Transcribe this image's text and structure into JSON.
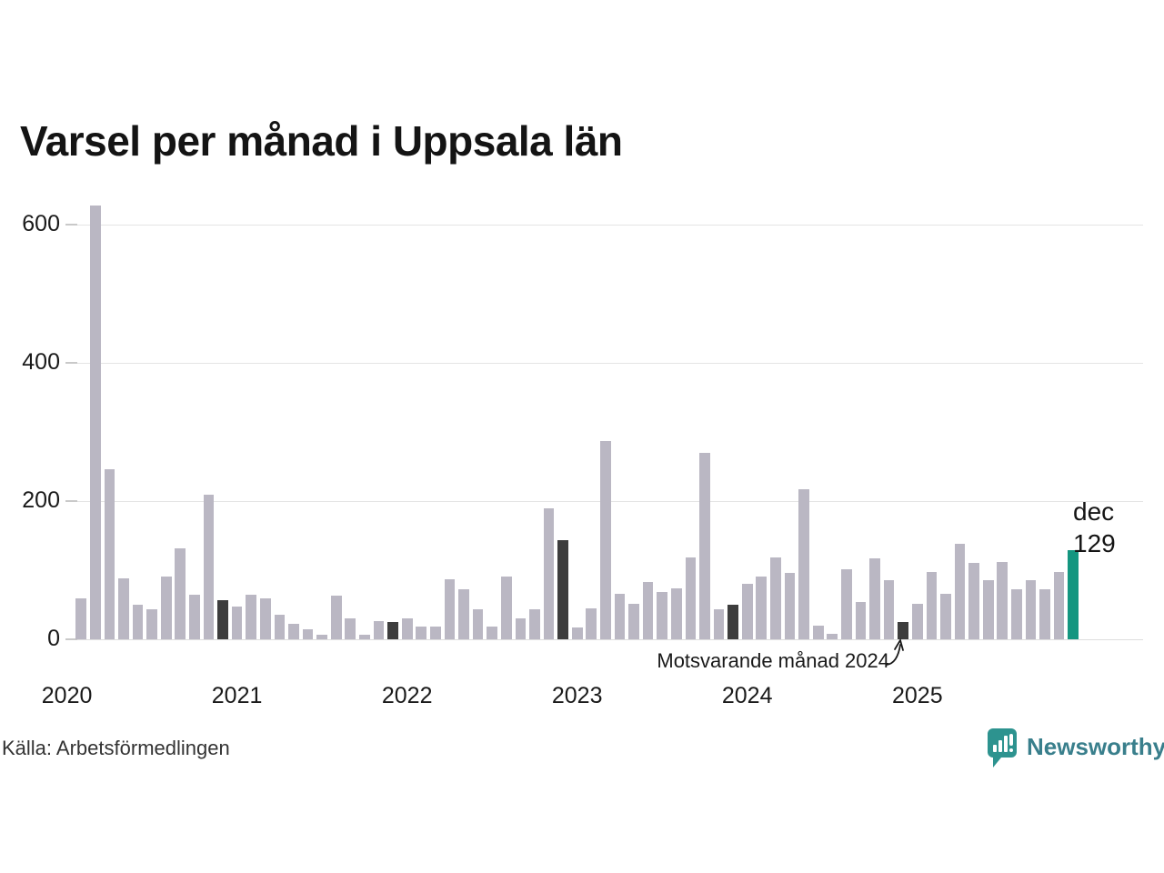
{
  "title": "Varsel per månad i Uppsala län",
  "source": "Källa: Arbetsförmedlingen",
  "annotation": {
    "text": "Motsvarande månad 2024"
  },
  "highlight_label": {
    "line1": "dec",
    "line2": "129"
  },
  "branding": {
    "logo_text": "Newsworthy"
  },
  "colors": {
    "bar_default": "#bab7c3",
    "bar_december": "#3d3d3d",
    "bar_highlight": "#149680",
    "gridline": "#e4e4e4",
    "tick": "#c9c9c9",
    "logo_icon": "#2d938f",
    "logo_text": "#397f8c"
  },
  "chart_data": {
    "type": "bar",
    "title": "Varsel per månad i Uppsala län",
    "xlabel": "",
    "ylabel": "",
    "ylim": [
      0,
      650
    ],
    "yticks": [
      0,
      200,
      400,
      600
    ],
    "grid": "horizontal",
    "legend_position": "none",
    "start_month": "2020-02",
    "year_labels": [
      "2020",
      "2021",
      "2022",
      "2023",
      "2024",
      "2025"
    ],
    "series": [
      {
        "name": "Varsel per månad",
        "values": [
          59,
          628,
          246,
          88,
          50,
          43,
          91,
          132,
          64,
          209,
          56,
          48,
          64,
          59,
          35,
          23,
          15,
          6,
          63,
          30,
          6,
          26,
          25,
          30,
          18,
          19,
          87,
          72,
          43,
          18,
          91,
          30,
          43,
          190,
          143,
          17,
          45,
          287,
          66,
          52,
          83,
          68,
          74,
          118,
          270,
          44,
          50,
          80,
          91,
          118,
          96,
          217,
          20,
          8,
          101,
          54,
          117,
          86,
          25,
          52,
          97,
          66,
          138,
          111,
          85,
          112,
          73,
          86,
          72,
          98,
          129
        ]
      }
    ],
    "december_indices": [
      10,
      22,
      34,
      46,
      58
    ],
    "highlight_index": 70,
    "highlight_value": 129,
    "annotations": [
      {
        "text": "Motsvarande månad 2024",
        "target_month": "2024-12"
      },
      {
        "text": "dec 129",
        "target_month": "2025-12"
      }
    ]
  }
}
